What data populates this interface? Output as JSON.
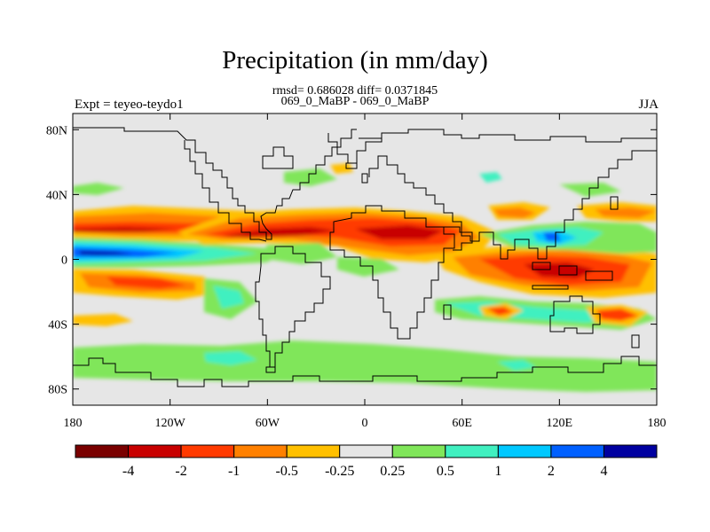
{
  "title": "Precipitation (in mm/day)",
  "stats": "rmsd= 0.686028 diff= 0.0371845",
  "subtitle": "069_0_MaBP - 069_0_MaBP",
  "left_label": "Expt = teyeo-teydo1",
  "right_label": "JJA",
  "map": {
    "projection": "cylindrical-equidistant",
    "lon_range": [
      -180,
      180
    ],
    "lat_range": [
      -90,
      90
    ],
    "x_ticks": [
      {
        "value": -180,
        "label": "180"
      },
      {
        "value": -120,
        "label": "120W"
      },
      {
        "value": -60,
        "label": "60W"
      },
      {
        "value": 0,
        "label": "0"
      },
      {
        "value": 60,
        "label": "60E"
      },
      {
        "value": 120,
        "label": "120E"
      },
      {
        "value": 180,
        "label": "180"
      }
    ],
    "y_ticks": [
      {
        "value": 80,
        "label": "80N"
      },
      {
        "value": 40,
        "label": "40N"
      },
      {
        "value": 0,
        "label": "0"
      },
      {
        "value": -40,
        "label": "40S"
      },
      {
        "value": -80,
        "label": "80S"
      }
    ],
    "background_color": "#e6e6e6",
    "coastline_color": "#000000"
  },
  "colorbar": {
    "colors": [
      "#7a0000",
      "#c80000",
      "#ff3a00",
      "#ff8000",
      "#ffc000",
      "#e6e6e6",
      "#80e65a",
      "#40f0c0",
      "#00c8ff",
      "#0060ff",
      "#0000a0"
    ],
    "labels": [
      "-4",
      "-2",
      "-1",
      "-0.5",
      "-0.25",
      "0.25",
      "0.5",
      "1",
      "2",
      "4"
    ]
  }
}
